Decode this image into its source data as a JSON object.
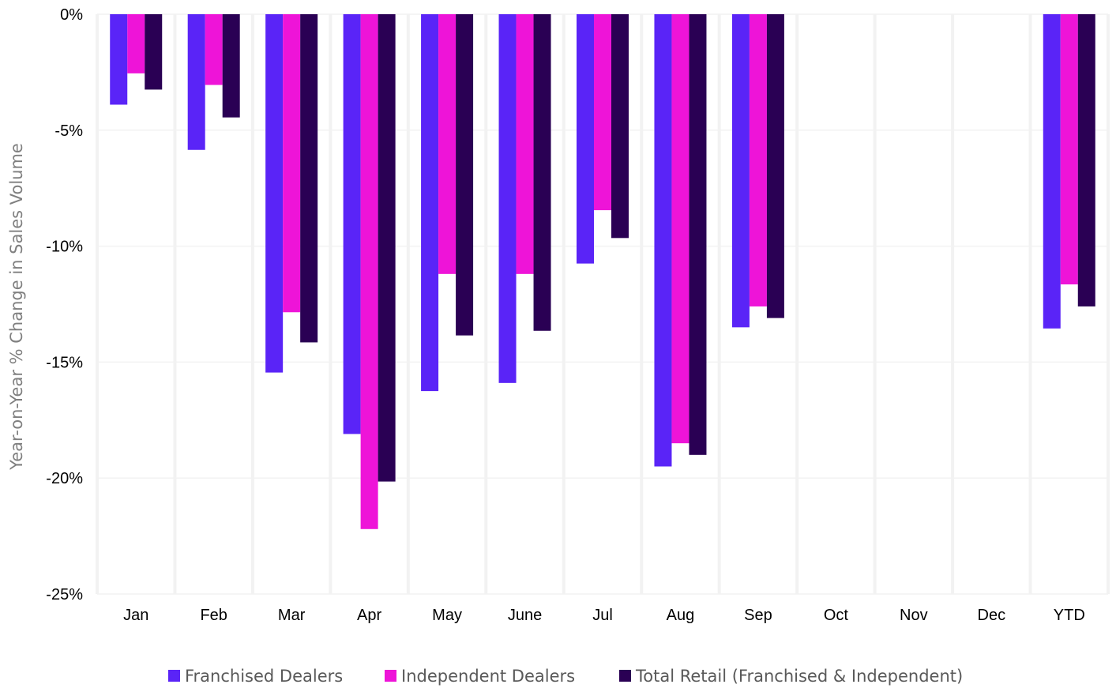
{
  "chart_data": {
    "type": "bar",
    "title": "",
    "xlabel": "",
    "ylabel": "Year-on-Year % Change in Sales Volume",
    "ylim": [
      -25,
      0
    ],
    "y_ticks": [
      0,
      -5,
      -10,
      -15,
      -20,
      -25
    ],
    "y_tick_labels": [
      "0%",
      "-5%",
      "-10%",
      "-15%",
      "-20%",
      "-25%"
    ],
    "categories": [
      "Jan",
      "Feb",
      "Mar",
      "Apr",
      "May",
      "June",
      "Jul",
      "Aug",
      "Sep",
      "Oct",
      "Nov",
      "Dec",
      "YTD"
    ],
    "series": [
      {
        "name": "Franchised Dealers",
        "color": "#5a24f7",
        "values": [
          -3.9,
          -5.85,
          -15.45,
          -18.1,
          -16.25,
          -15.9,
          -10.75,
          -19.5,
          -13.5,
          null,
          null,
          null,
          -13.55
        ]
      },
      {
        "name": "Independent Dealers",
        "color": "#ee14d8",
        "values": [
          -2.55,
          -3.05,
          -12.85,
          -22.2,
          -11.2,
          -11.2,
          -8.45,
          -18.5,
          -12.6,
          null,
          null,
          null,
          -11.65
        ]
      },
      {
        "name": "Total Retail (Franchised & Independent)",
        "color": "#2a0054",
        "values": [
          -3.25,
          -4.45,
          -14.15,
          -20.15,
          -13.85,
          -13.65,
          -9.65,
          -19.0,
          -13.1,
          null,
          null,
          null,
          -12.6
        ]
      }
    ],
    "grid": true,
    "legend_position": "bottom"
  }
}
